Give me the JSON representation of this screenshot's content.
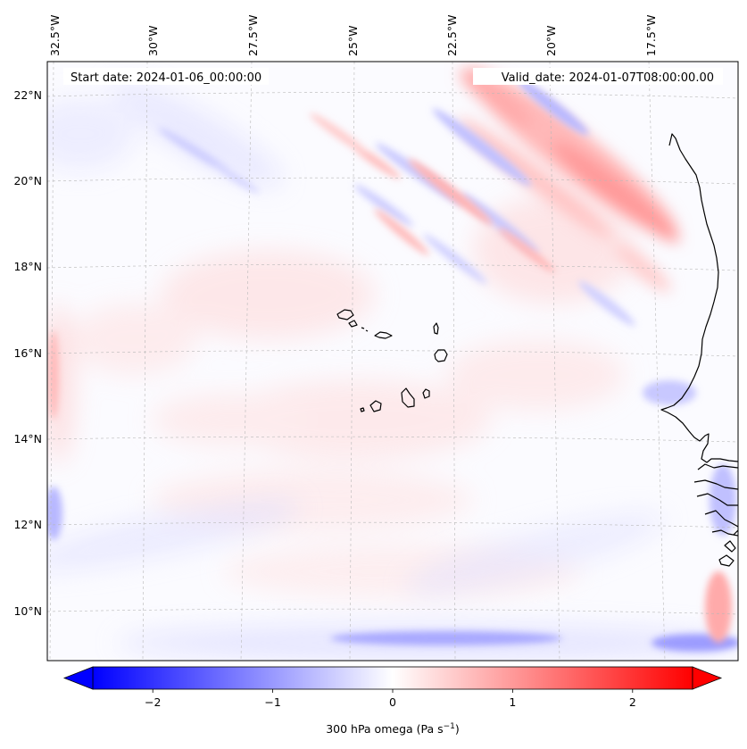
{
  "map": {
    "start_label": "Start date: 2024-01-06_00:00:00",
    "valid_label": "Valid_date: 2024-01-07T08:00:00.00",
    "lon_labels": [
      "32.5°W",
      "30°W",
      "27.5°W",
      "25°W",
      "22.5°W",
      "20°W",
      "17.5°W"
    ],
    "lat_labels": [
      "22°N",
      "20°N",
      "18°N",
      "16°N",
      "14°N",
      "12°N",
      "10°N"
    ]
  },
  "colorbar": {
    "label_prefix": "300 hPa omega (Pa s",
    "label_exponent": "−1",
    "label_suffix": ")",
    "ticks": [
      "−2",
      "−1",
      "0",
      "1",
      "2"
    ],
    "tick_values": [
      -2,
      -1,
      0,
      1,
      2
    ],
    "vmin": -2.5,
    "vmax": 2.5,
    "colormap": "bwr",
    "colors": {
      "low": "#0000ff",
      "mid": "#ffffff",
      "high": "#ff0000"
    }
  },
  "colors": {
    "coastline": "#000000",
    "gridline": "#b0b0b0",
    "frame": "#000000",
    "background": "#ffffff"
  }
}
